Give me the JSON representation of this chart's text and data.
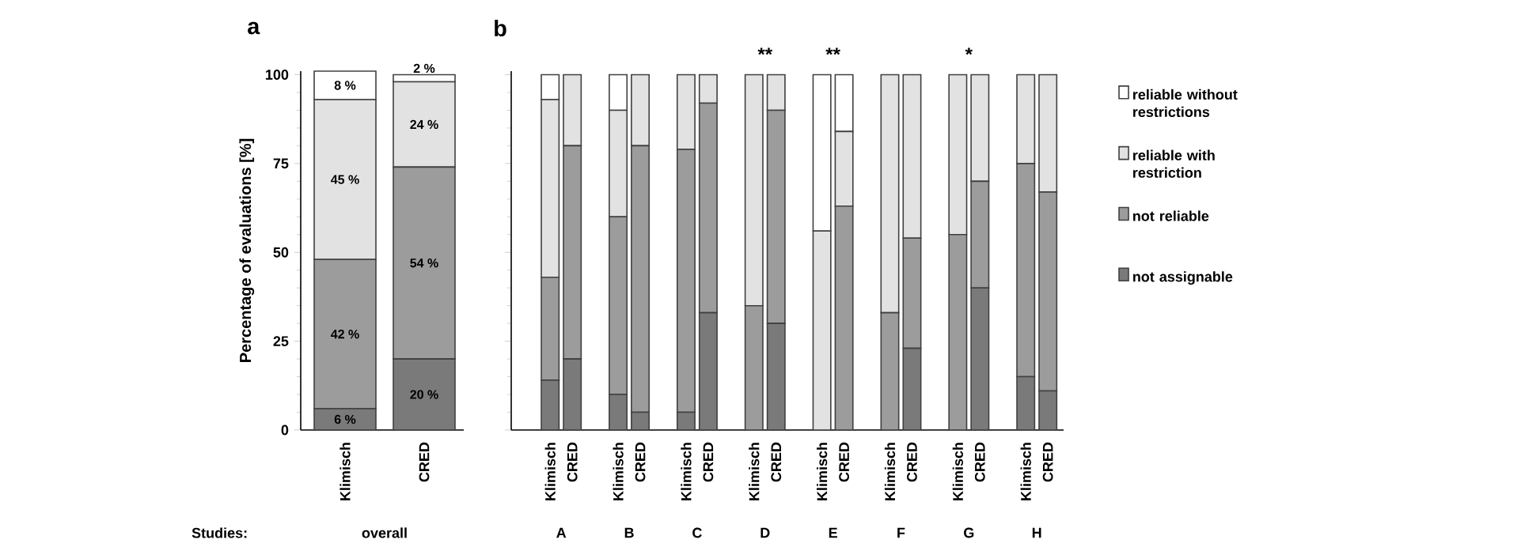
{
  "chart_data": [
    {
      "type": "bar",
      "title": "a",
      "ylabel": "Percentage of evaluations [%]",
      "stacked": true,
      "categories": [
        "Klimisch",
        "CRED"
      ],
      "series": [
        {
          "color": "#7a7a7a",
          "values": [
            6,
            20
          ],
          "value_labels": [
            "6 %",
            "20 %"
          ]
        },
        {
          "color": "#9c9c9c",
          "values": [
            42,
            54
          ],
          "value_labels": [
            "42 %",
            "54 %"
          ]
        },
        {
          "color": "#e2e2e2",
          "values": [
            45,
            24
          ],
          "value_labels": [
            "45 %",
            "24 %"
          ]
        },
        {
          "color": "#ffffff",
          "values": [
            8,
            2
          ],
          "value_labels": [
            "8 %",
            "2 %"
          ]
        }
      ],
      "ylim": [
        0,
        101
      ],
      "yticks": [
        0,
        25,
        50,
        75,
        100
      ],
      "legend": false,
      "annotations": [
        "Studies:",
        "overall"
      ]
    },
    {
      "type": "bar",
      "title": "b",
      "stacked": true,
      "categories": [
        "Klimisch",
        "CRED",
        "Klimisch",
        "CRED",
        "Klimisch",
        "CRED",
        "Klimisch",
        "CRED",
        "Klimisch",
        "CRED",
        "Klimisch",
        "CRED",
        "Klimisch",
        "CRED",
        "Klimisch",
        "CRED"
      ],
      "series": [
        {
          "name": "not assignable",
          "color": "#7a7a7a",
          "values": [
            14,
            20,
            10,
            5,
            5,
            33,
            0,
            30,
            0,
            0,
            0,
            23,
            0,
            40,
            15,
            11
          ]
        },
        {
          "name": "not reliable",
          "color": "#9c9c9c",
          "values": [
            29,
            60,
            50,
            75,
            74,
            59,
            35,
            60,
            0,
            63,
            33,
            31,
            55,
            30,
            60,
            56
          ]
        },
        {
          "name": "reliable with restriction",
          "color": "#e2e2e2",
          "values": [
            50,
            20,
            30,
            20,
            21,
            8,
            65,
            10,
            56,
            21,
            67,
            46,
            45,
            30,
            25,
            33
          ]
        },
        {
          "name": "reliable without restrictions",
          "color": "#ffffff",
          "values": [
            7,
            0,
            10,
            0,
            0,
            0,
            0,
            0,
            44,
            16,
            0,
            0,
            0,
            0,
            0,
            0
          ]
        }
      ],
      "ylim": [
        0,
        101
      ],
      "yticks": [
        0,
        25,
        50,
        75,
        100
      ],
      "tick_labels": "x",
      "legend": "right",
      "annotations": [
        "A",
        "B",
        "C",
        "D",
        "E",
        "F",
        "G",
        "H",
        "**",
        "**",
        "*"
      ]
    }
  ]
}
